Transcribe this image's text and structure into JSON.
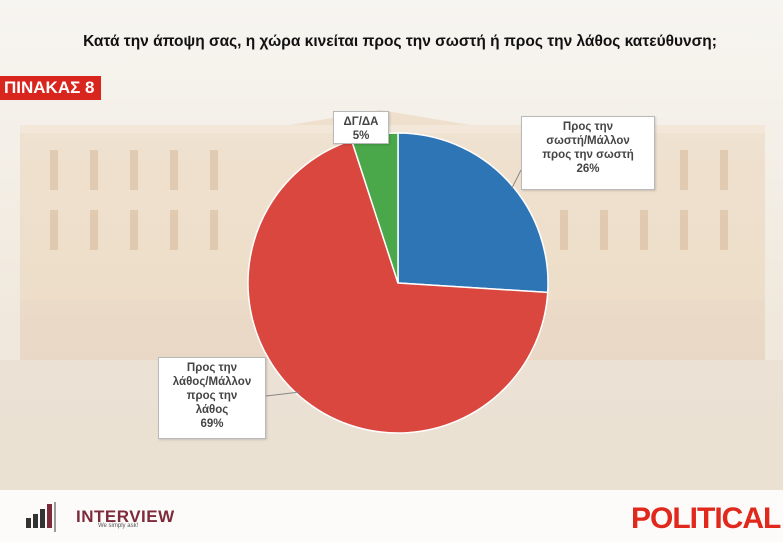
{
  "header": {
    "title": "Κατά την άποψη σας, η χώρα κινείται προς την σωστή ή προς την λάθος κατεύθυνση;",
    "table_label": "ΠΙΝΑΚΑΣ 8"
  },
  "chart_data": {
    "type": "pie",
    "title": "Κατά την άποψη σας, η χώρα κινείται προς την σωστή ή προς την λάθος κατεύθυνση;",
    "slices": [
      {
        "label": "Προς την σωστή/Μάλλον προς την σωστή",
        "label_lines": [
          "Προς την",
          "σωστή/Μάλλον",
          "προς την σωστή"
        ],
        "value": 26,
        "value_label": "26%",
        "color": "#2e75b6"
      },
      {
        "label": "Προς την λάθος/Μάλλον προς την λάθος",
        "label_lines": [
          "Προς την",
          "λάθος/Μάλλον",
          "προς την",
          "λάθος"
        ],
        "value": 69,
        "value_label": "69%",
        "color": "#d9473f"
      },
      {
        "label": "ΔΓ/ΔΑ",
        "label_lines": [
          "ΔΓ/ΔΑ"
        ],
        "value": 5,
        "value_label": "5%",
        "color": "#4aa84b"
      }
    ],
    "start_angle": "12 o'clock, clockwise"
  },
  "footer": {
    "interview_name": "INTERVIEW",
    "interview_tagline": "We simply ask!",
    "political_logo": "POLITICAL"
  }
}
